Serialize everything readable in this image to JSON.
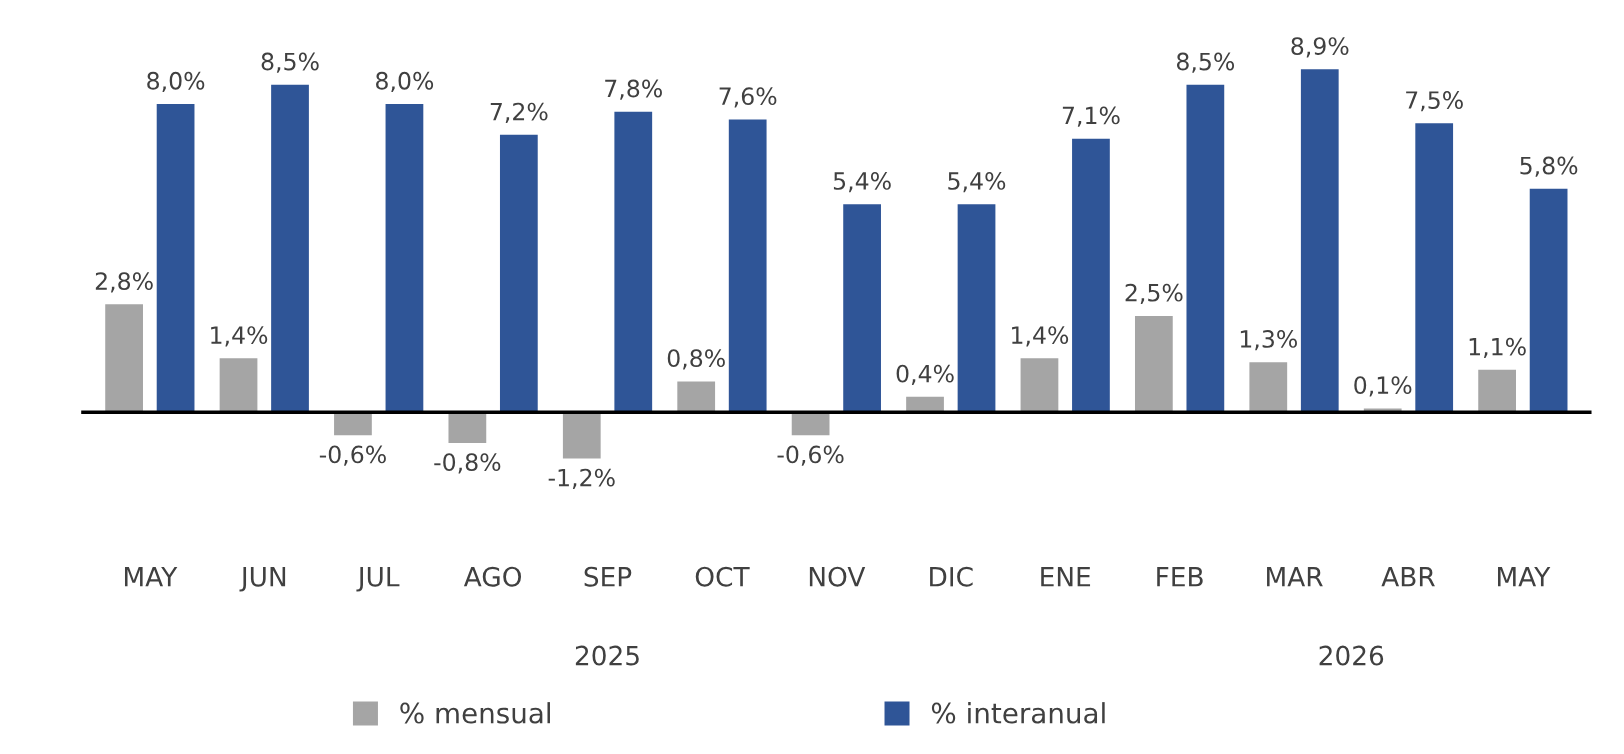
{
  "chart_data": {
    "type": "bar",
    "categories": [
      "MAY",
      "JUN",
      "JUL",
      "AGO",
      "SEP",
      "OCT",
      "NOV",
      "DIC",
      "ENE",
      "FEB",
      "MAR",
      "ABR",
      "MAY"
    ],
    "series": [
      {
        "name": "% mensual",
        "color": "#a5a5a5",
        "values": [
          2.8,
          1.4,
          -0.6,
          -0.8,
          -1.2,
          0.8,
          -0.6,
          0.4,
          1.4,
          2.5,
          1.3,
          0.1,
          1.1
        ],
        "value_labels": [
          "2,8%",
          "1,4%",
          "-0,6%",
          "-0,8%",
          "-1,2%",
          "0,8%",
          "-0,6%",
          "0,4%",
          "1,4%",
          "2,5%",
          "1,3%",
          "0,1%",
          "1,1%"
        ]
      },
      {
        "name": "% interanual",
        "color": "#2f5597",
        "values": [
          8.0,
          8.5,
          8.0,
          7.2,
          7.8,
          7.6,
          5.4,
          5.4,
          7.1,
          8.5,
          8.9,
          7.5,
          5.8
        ],
        "value_labels": [
          "8,0%",
          "8,5%",
          "8,0%",
          "7,2%",
          "7,8%",
          "7,6%",
          "5,4%",
          "5,4%",
          "7,1%",
          "8,5%",
          "8,9%",
          "7,5%",
          "5,8%"
        ]
      }
    ],
    "annotations": [
      "2025",
      "2026"
    ],
    "legend": "bottom",
    "grid": false
  }
}
